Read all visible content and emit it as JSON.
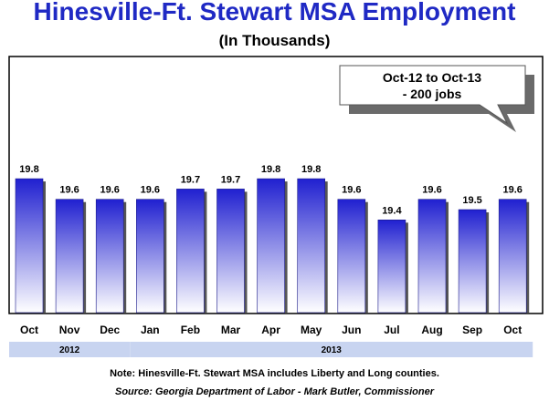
{
  "chart_data": {
    "type": "bar",
    "title": "Hinesville-Ft. Stewart MSA Employment",
    "subtitle": "(In Thousands)",
    "categories": [
      "Oct",
      "Nov",
      "Dec",
      "Jan",
      "Feb",
      "Mar",
      "Apr",
      "May",
      "Jun",
      "Jul",
      "Aug",
      "Sep",
      "Oct"
    ],
    "values": [
      19.8,
      19.6,
      19.6,
      19.6,
      19.7,
      19.7,
      19.8,
      19.8,
      19.6,
      19.4,
      19.6,
      19.5,
      19.6
    ],
    "data_labels": [
      "19.8",
      "19.6",
      "19.6",
      "19.6",
      "19.7",
      "19.7",
      "19.8",
      "19.8",
      "19.6",
      "19.4",
      "19.6",
      "19.5",
      "19.6"
    ],
    "ylim": [
      18.5,
      20.1
    ],
    "grid": false,
    "year_groups": [
      {
        "label": "2012",
        "start_index": 0,
        "end_index": 2
      },
      {
        "label": "2013",
        "start_index": 3,
        "end_index": 12
      }
    ],
    "callout": {
      "line1": "Oct-12 to Oct-13",
      "line2": "- 200 jobs"
    },
    "colors": {
      "title": "#1f29c4",
      "bar_top": "#2020d0",
      "bar_bottom": "#ffffff",
      "year_band": "#c8d4f0"
    }
  },
  "footer": {
    "note": "Note:  Hinesville-Ft. Stewart MSA includes Liberty and Long counties.",
    "source": "Source: Georgia Department of Labor - Mark Butler, Commissioner"
  }
}
